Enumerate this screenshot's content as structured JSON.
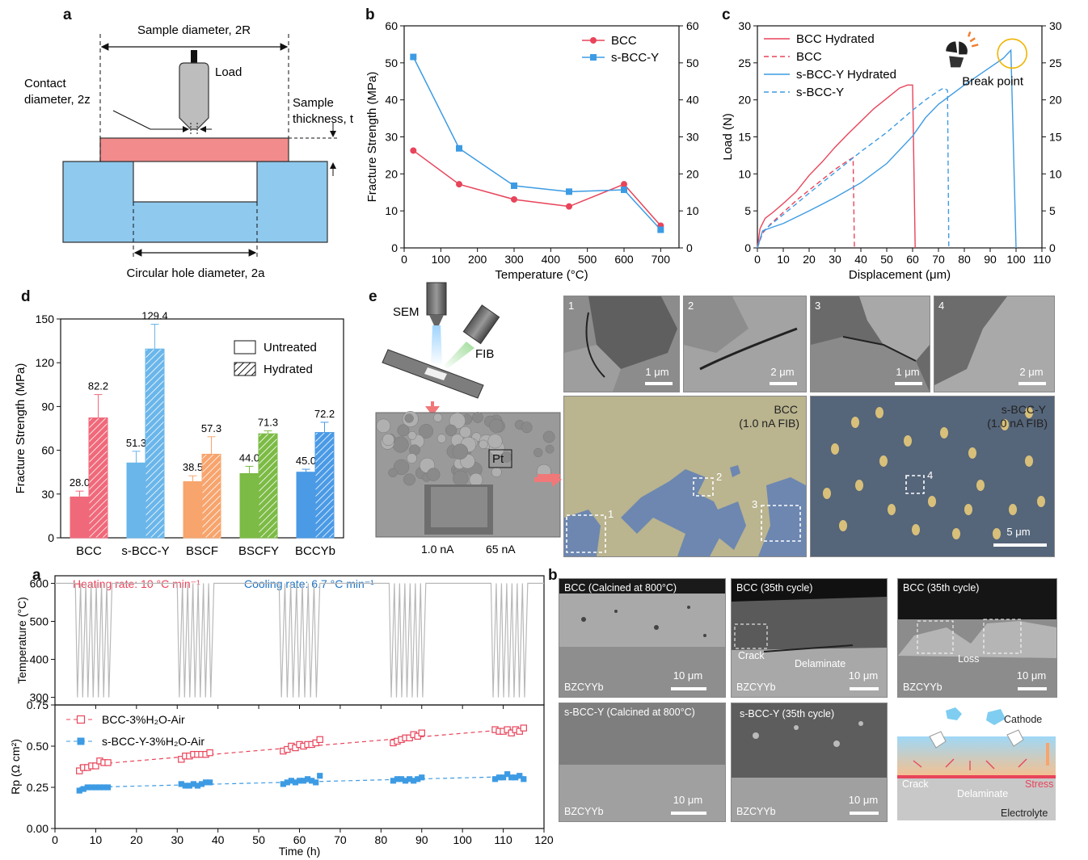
{
  "panel_letters": {
    "a": "a",
    "b": "b",
    "c": "c",
    "d": "d",
    "e": "e",
    "a2": "a",
    "b2": "b"
  },
  "schematic_a": {
    "sample_diameter": "Sample diameter, 2R",
    "load": "Load",
    "contact_diameter_1": "Contact",
    "contact_diameter_2": "diameter, 2z",
    "sample_thickness_1": "Sample",
    "sample_thickness_2": "thickness, t",
    "hole_diameter": "Circular hole diameter, 2a",
    "colors": {
      "sample": "#f28b8b",
      "support": "#8fc9ee",
      "tip": "#bdbdbd"
    }
  },
  "chart_data": [
    {
      "id": "b",
      "type": "line",
      "xlabel": "Temperature (°C)",
      "ylabel": "Fracture Strength (MPa)",
      "xlim": [
        0,
        750
      ],
      "ylim": [
        0,
        60
      ],
      "xticks": [
        0,
        100,
        200,
        300,
        400,
        500,
        600,
        700
      ],
      "yticks": [
        0,
        10,
        20,
        30,
        40,
        50,
        60
      ],
      "legend": "top-right",
      "series": [
        {
          "name": "BCC",
          "color": "#e8445a",
          "marker": "circle",
          "x": [
            25,
            150,
            300,
            450,
            600,
            700
          ],
          "y": [
            26.3,
            17.2,
            13.1,
            11.2,
            17.2,
            6.0
          ]
        },
        {
          "name": "s-BCC-Y",
          "color": "#3d9be3",
          "marker": "square",
          "x": [
            25,
            150,
            300,
            450,
            600,
            700
          ],
          "y": [
            51.6,
            26.9,
            16.8,
            15.2,
            15.7,
            4.9
          ]
        }
      ]
    },
    {
      "id": "c",
      "type": "line",
      "xlabel": "Displacement (μm)",
      "ylabel": "Load (N)",
      "xlim": [
        0,
        110
      ],
      "ylim": [
        0,
        30
      ],
      "xticks": [
        0,
        10,
        20,
        30,
        40,
        50,
        60,
        70,
        80,
        90,
        100,
        110
      ],
      "yticks": [
        0,
        5,
        10,
        15,
        20,
        25,
        30
      ],
      "legend": "top-left",
      "annotation": "Break point",
      "series": [
        {
          "name": "BCC  Hydrated",
          "color": "#e8445a",
          "dash": false,
          "x": [
            0,
            1,
            3,
            6,
            10,
            15,
            20,
            25,
            30,
            35,
            40,
            45,
            50,
            55,
            58,
            60,
            61
          ],
          "y": [
            0,
            2.6,
            4.0,
            4.8,
            6.0,
            7.6,
            9.8,
            11.6,
            13.6,
            15.4,
            17.1,
            18.8,
            20.2,
            21.6,
            22.0,
            22.0,
            0
          ]
        },
        {
          "name": "BCC",
          "color": "#e8445a",
          "dash": true,
          "x": [
            0,
            2,
            5,
            10,
            15,
            20,
            25,
            30,
            35,
            37,
            37.5
          ],
          "y": [
            0,
            2.0,
            3.2,
            4.8,
            6.4,
            7.8,
            9.2,
            10.6,
            11.8,
            12.2,
            0
          ]
        },
        {
          "name": "s-BCC-Y Hydrated",
          "color": "#3d9be3",
          "dash": false,
          "x": [
            0,
            2,
            5,
            10,
            20,
            30,
            40,
            50,
            60,
            65,
            70,
            80,
            90,
            95,
            98,
            100
          ],
          "y": [
            0,
            2.3,
            2.7,
            3.3,
            5.0,
            6.8,
            8.8,
            11.4,
            15.1,
            17.6,
            19.4,
            22.0,
            24.4,
            25.6,
            26.7,
            0
          ]
        },
        {
          "name": "s-BCC-Y",
          "color": "#3d9be3",
          "dash": true,
          "x": [
            0,
            2,
            5,
            10,
            20,
            30,
            40,
            50,
            60,
            65,
            70,
            72,
            73.5,
            74
          ],
          "y": [
            0,
            2.2,
            3.1,
            4.5,
            7.4,
            10.2,
            13.0,
            15.6,
            18.6,
            20.0,
            21.2,
            21.6,
            21.3,
            0
          ]
        }
      ]
    },
    {
      "id": "d",
      "type": "bar",
      "ylabel": "Fracture Strength (MPa)",
      "ylim": [
        0,
        150
      ],
      "yticks": [
        0,
        30,
        60,
        90,
        120,
        150
      ],
      "categories": [
        "BCC",
        "s-BCC-Y",
        "BSCF",
        "BSCFY",
        "BCCYb"
      ],
      "legend": "top-right",
      "legend_entries": [
        "Untreated",
        "Hydrated"
      ],
      "colors": [
        "#f0697a",
        "#6ab6ea",
        "#f7a46d",
        "#7cbb45",
        "#4a9ae6"
      ],
      "series": [
        {
          "name": "Untreated",
          "values": [
            28.0,
            51.3,
            38.5,
            44.0,
            45.0
          ],
          "errors": [
            4,
            8,
            4,
            5,
            2
          ]
        },
        {
          "name": "Hydrated",
          "values": [
            82.2,
            129.4,
            57.3,
            71.3,
            72.2
          ],
          "errors": [
            16,
            17,
            12,
            2,
            7
          ]
        }
      ],
      "value_labels": {
        "Untreated": [
          "28.0",
          "51.3",
          "38.5",
          "44.0",
          "45.0"
        ],
        "Hydrated": [
          "82.2",
          "129.4",
          "57.3",
          "71.3",
          "72.2"
        ]
      }
    },
    {
      "id": "a2_temp",
      "type": "line",
      "ylabel": "Temperature (°C)",
      "xlim": [
        0,
        120
      ],
      "ylim": [
        280,
        620
      ],
      "yticks": [
        300,
        400,
        500,
        600
      ],
      "heating": "Heating rate: 10 °C min⁻¹",
      "cooling": "Cooling rate: 6.7 °C min⁻¹",
      "cycle_groups": [
        [
          5,
          14
        ],
        [
          30,
          39
        ],
        [
          55,
          65
        ],
        [
          82,
          91
        ],
        [
          107,
          116
        ]
      ],
      "cycles_per_group": 7
    },
    {
      "id": "a2_rp",
      "type": "scatter",
      "xlabel": "Time (h)",
      "ylabel": "Rp (Ω cm²)",
      "xlim": [
        0,
        120
      ],
      "ylim": [
        0,
        0.75
      ],
      "xticks": [
        0,
        10,
        20,
        30,
        40,
        50,
        60,
        70,
        80,
        90,
        100,
        110,
        120
      ],
      "yticks": [
        0.0,
        0.25,
        0.5,
        0.75
      ],
      "legend": "top-left",
      "series": [
        {
          "name": "BCC-3%H₂O-Air",
          "color": "#e8445a",
          "marker": "open-square",
          "x": [
            6,
            7,
            8,
            9,
            10,
            11,
            12,
            13,
            31,
            32,
            33,
            34,
            35,
            36,
            37,
            38,
            56,
            57,
            58,
            59,
            60,
            61,
            62,
            63,
            64,
            65,
            83,
            84,
            85,
            86,
            87,
            88,
            89,
            90,
            108,
            109,
            110,
            111,
            112,
            113,
            114,
            115
          ],
          "y": [
            0.35,
            0.37,
            0.37,
            0.38,
            0.38,
            0.41,
            0.4,
            0.4,
            0.42,
            0.44,
            0.44,
            0.45,
            0.45,
            0.45,
            0.45,
            0.46,
            0.47,
            0.48,
            0.5,
            0.49,
            0.51,
            0.5,
            0.51,
            0.51,
            0.52,
            0.54,
            0.52,
            0.53,
            0.54,
            0.55,
            0.55,
            0.57,
            0.56,
            0.58,
            0.6,
            0.59,
            0.59,
            0.6,
            0.58,
            0.6,
            0.59,
            0.61
          ]
        },
        {
          "name": "s-BCC-Y-3%H₂O-Air",
          "color": "#3d9be3",
          "marker": "filled-square",
          "x": [
            6,
            7,
            8,
            9,
            10,
            11,
            12,
            13,
            31,
            32,
            33,
            34,
            35,
            36,
            37,
            38,
            56,
            57,
            58,
            59,
            60,
            61,
            62,
            63,
            64,
            65,
            83,
            84,
            85,
            86,
            87,
            88,
            89,
            90,
            108,
            109,
            110,
            111,
            112,
            113,
            114,
            115
          ],
          "y": [
            0.23,
            0.24,
            0.25,
            0.25,
            0.25,
            0.25,
            0.25,
            0.25,
            0.27,
            0.26,
            0.26,
            0.27,
            0.26,
            0.27,
            0.28,
            0.28,
            0.27,
            0.28,
            0.29,
            0.28,
            0.29,
            0.29,
            0.3,
            0.29,
            0.28,
            0.32,
            0.29,
            0.3,
            0.3,
            0.29,
            0.3,
            0.29,
            0.3,
            0.31,
            0.3,
            0.31,
            0.31,
            0.33,
            0.31,
            0.31,
            0.32,
            0.3
          ]
        }
      ]
    }
  ],
  "panel_e": {
    "sem": "SEM",
    "fib": "FIB",
    "pt": "Pt",
    "current_low": "1.0 nA",
    "current_high": "65 nA",
    "tiles": [
      {
        "num": "1",
        "scale": "1 μm"
      },
      {
        "num": "2",
        "scale": "2 μm"
      },
      {
        "num": "3",
        "scale": "1 μm"
      },
      {
        "num": "4",
        "scale": "2 μm"
      }
    ],
    "bcc_label_1": "BCC",
    "bcc_label_2": "(1.0 nA FIB)",
    "sbccy_label_1": "s-BCC-Y",
    "sbccy_label_2": "(1.0 nA FIB)",
    "box_labels": [
      "1",
      "2",
      "3",
      "4"
    ],
    "big_scale": "5 μm"
  },
  "panel_b2": {
    "tiles": [
      {
        "title": "BCC (Calcined at 800°C)",
        "sub": "BZCYYb",
        "scale": "10 μm"
      },
      {
        "title": "BCC (35th cycle)",
        "sub": "BZCYYb",
        "scale": "10 μm",
        "crack": "Crack",
        "delaminate": "Delaminate"
      },
      {
        "title": "BCC (35th cycle)",
        "sub": "BZCYYb",
        "scale": "10 μm",
        "loss": "Loss"
      },
      {
        "title": "s-BCC-Y (Calcined at 800°C)",
        "sub": "BZCYYb",
        "scale": "10 μm"
      },
      {
        "title": "s-BCC-Y (35th cycle)",
        "sub": "BZCYYb",
        "scale": "10 μm"
      }
    ],
    "schematic": {
      "cathode": "Cathode",
      "crack": "Crack",
      "delaminate": "Delaminate",
      "stress": "Stress",
      "electrolyte": "Electrolyte"
    }
  }
}
